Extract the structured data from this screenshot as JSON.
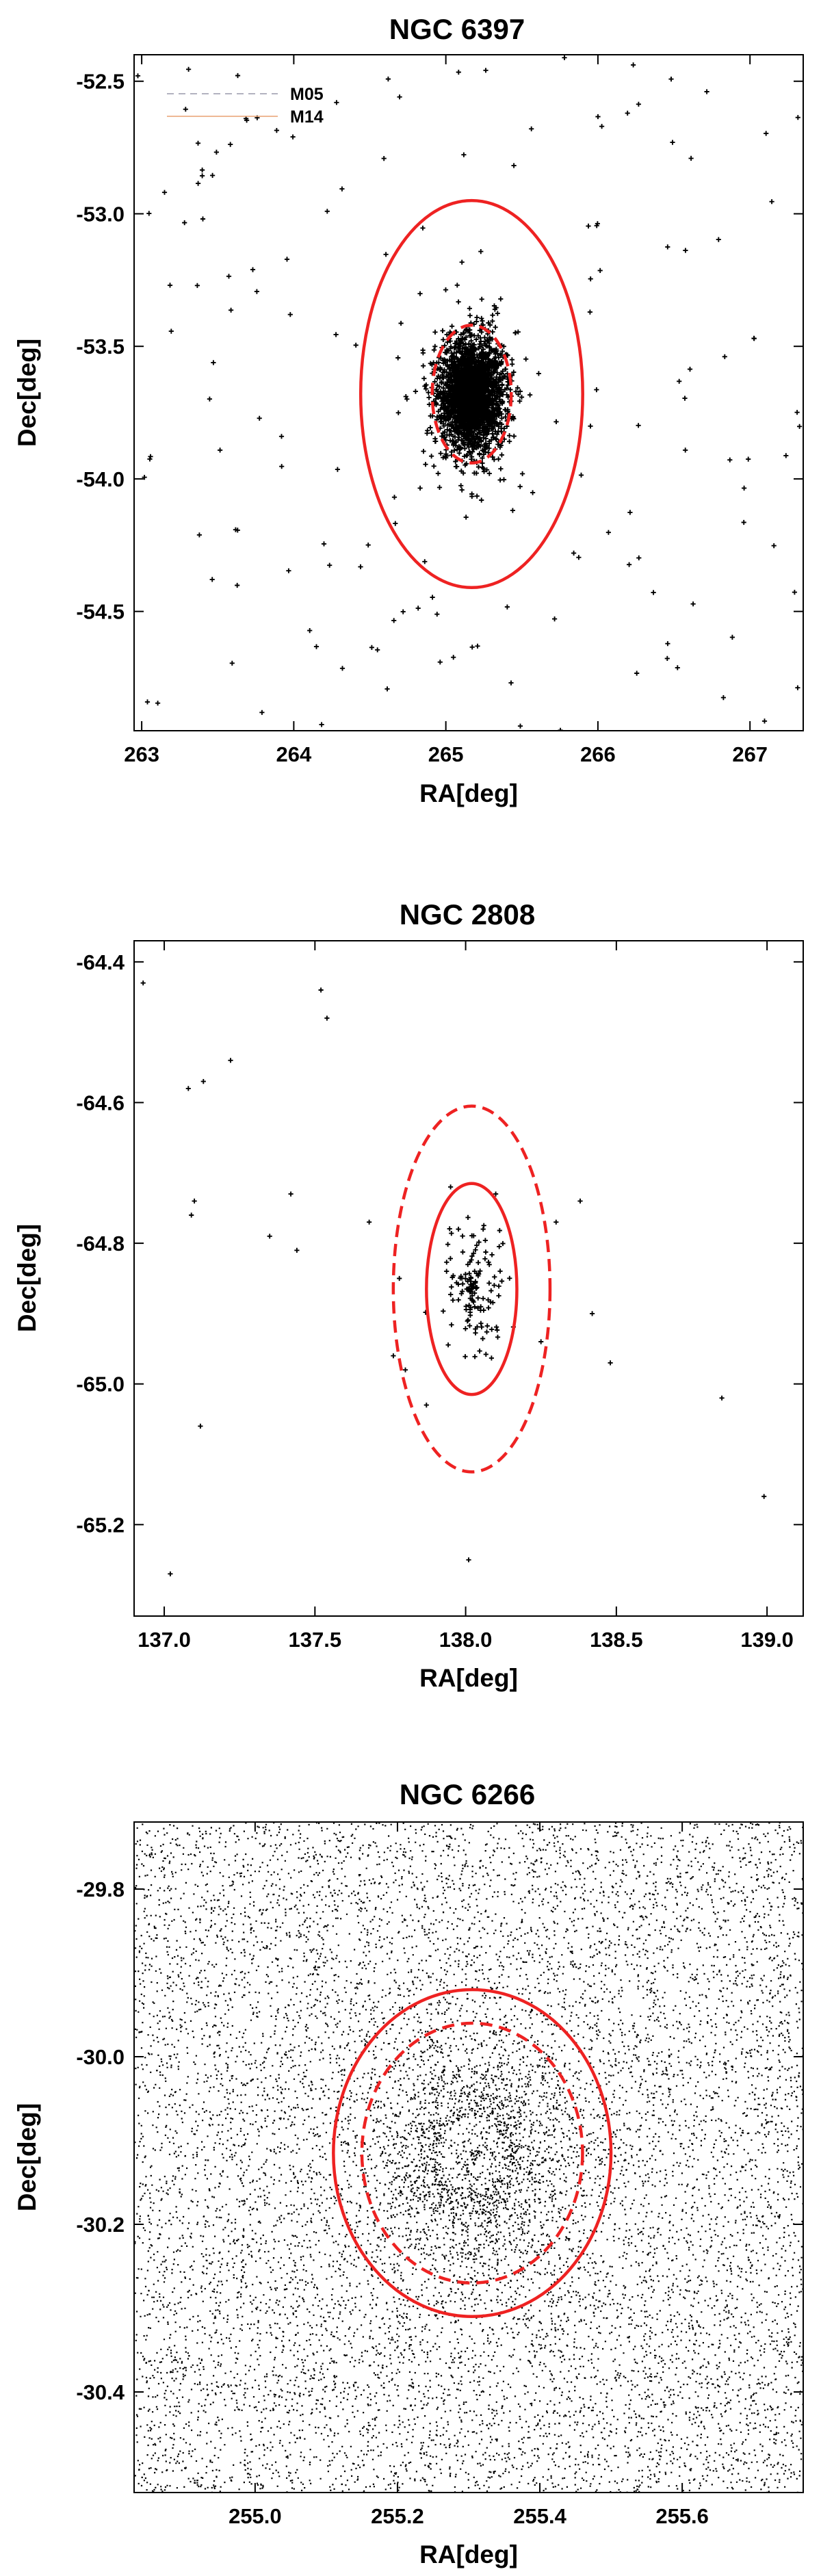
{
  "chart_data": [
    {
      "type": "scatter",
      "title": "NGC 6397",
      "xlabel": "RA[deg]",
      "ylabel": "Dec[deg]",
      "xlim": [
        262.95,
        267.35
      ],
      "ylim": [
        -54.95,
        -52.4
      ],
      "xticks": [
        263,
        264,
        265,
        266,
        267
      ],
      "xtick_labels": [
        "263",
        "264",
        "265",
        "266",
        "267"
      ],
      "yticks": [
        -52.5,
        -53.0,
        -53.5,
        -54.0,
        -54.5
      ],
      "ytick_labels": [
        "-52.5",
        "-53.0",
        "-53.5",
        "-54.0",
        "-54.5"
      ],
      "center": [
        265.17,
        -53.68
      ],
      "circles": [
        {
          "name": "M05",
          "style": "dashed",
          "color": "#ee2222",
          "radius_deg": 0.26
        },
        {
          "name": "M14",
          "style": "solid",
          "color": "#ee2222",
          "radius_deg": 0.73
        }
      ],
      "legend": {
        "position": "top-left",
        "entries": [
          "M05",
          "M14"
        ]
      },
      "marker": "plus",
      "distribution": {
        "n_points": 3600,
        "core_radius_deg": 0.13,
        "extent_deg": 2.2,
        "background_points": 170,
        "hollow_core_deg": 0
      },
      "grid": false
    },
    {
      "type": "scatter",
      "title": "NGC 2808",
      "xlabel": "RA[deg]",
      "ylabel": "Dec[deg]",
      "xlim": [
        136.9,
        139.12
      ],
      "ylim": [
        -65.33,
        -64.37
      ],
      "xticks": [
        137.0,
        137.5,
        138.0,
        138.5,
        139.0
      ],
      "xtick_labels": [
        "137.0",
        "137.5",
        "138.0",
        "138.5",
        "139.0"
      ],
      "yticks": [
        -64.4,
        -64.6,
        -64.8,
        -65.0,
        -65.2
      ],
      "ytick_labels": [
        "-64.4",
        "-64.6",
        "-64.8",
        "-65.0",
        "-65.2"
      ],
      "center": [
        138.02,
        -64.865
      ],
      "circles": [
        {
          "style": "dashed",
          "color": "#ee2222",
          "radius_deg": 0.26
        },
        {
          "style": "solid",
          "color": "#ee2222",
          "radius_deg": 0.15
        }
      ],
      "marker": "plus",
      "points": [
        [
          136.93,
          -64.43
        ],
        [
          137.08,
          -64.58
        ],
        [
          137.13,
          -64.57
        ],
        [
          137.22,
          -64.54
        ],
        [
          137.52,
          -64.44
        ],
        [
          137.54,
          -64.48
        ],
        [
          137.1,
          -64.74
        ],
        [
          137.09,
          -64.76
        ],
        [
          137.35,
          -64.79
        ],
        [
          137.42,
          -64.73
        ],
        [
          137.44,
          -64.81
        ],
        [
          137.12,
          -65.06
        ],
        [
          137.02,
          -65.27
        ],
        [
          137.68,
          -64.77
        ],
        [
          137.78,
          -64.85
        ],
        [
          137.8,
          -64.98
        ],
        [
          137.87,
          -65.03
        ],
        [
          138.01,
          -65.25
        ],
        [
          138.42,
          -64.9
        ],
        [
          138.48,
          -64.97
        ],
        [
          138.85,
          -65.02
        ],
        [
          138.99,
          -65.16
        ],
        [
          138.38,
          -64.74
        ],
        [
          137.76,
          -64.96
        ],
        [
          138.25,
          -64.94
        ],
        [
          138.3,
          -64.77
        ],
        [
          137.95,
          -64.72
        ],
        [
          138.1,
          -64.73
        ]
      ],
      "distribution": {
        "n_points": 140,
        "core_radius_deg": 0.07,
        "extent_deg": 0.16,
        "background_points": 0,
        "hollow_core_deg": 0
      },
      "grid": false
    },
    {
      "type": "scatter",
      "title": "NGC 6266",
      "xlabel": "RA[deg]",
      "ylabel": "Dec[deg]",
      "xlim": [
        254.83,
        255.77
      ],
      "ylim": [
        -30.52,
        -29.72
      ],
      "xticks": [
        255.0,
        255.2,
        255.4,
        255.6
      ],
      "xtick_labels": [
        "255.0",
        "255.2",
        "255.4",
        "255.6"
      ],
      "yticks": [
        -29.8,
        -30.0,
        -30.2,
        -30.4
      ],
      "ytick_labels": [
        "-29.8",
        "-30.0",
        "-30.2",
        "-30.4"
      ],
      "center": [
        255.305,
        -30.115
      ],
      "circles": [
        {
          "style": "dashed",
          "color": "#ee2222",
          "radius_deg": 0.155
        },
        {
          "style": "solid",
          "color": "#ee2222",
          "radius_deg": 0.195
        }
      ],
      "marker": "dot",
      "distribution": {
        "n_points": 1600,
        "core_radius_deg": 0.09,
        "extent_deg": 0.2,
        "background_points": 11000,
        "hollow_core_deg": 0.045
      },
      "grid": false
    }
  ]
}
